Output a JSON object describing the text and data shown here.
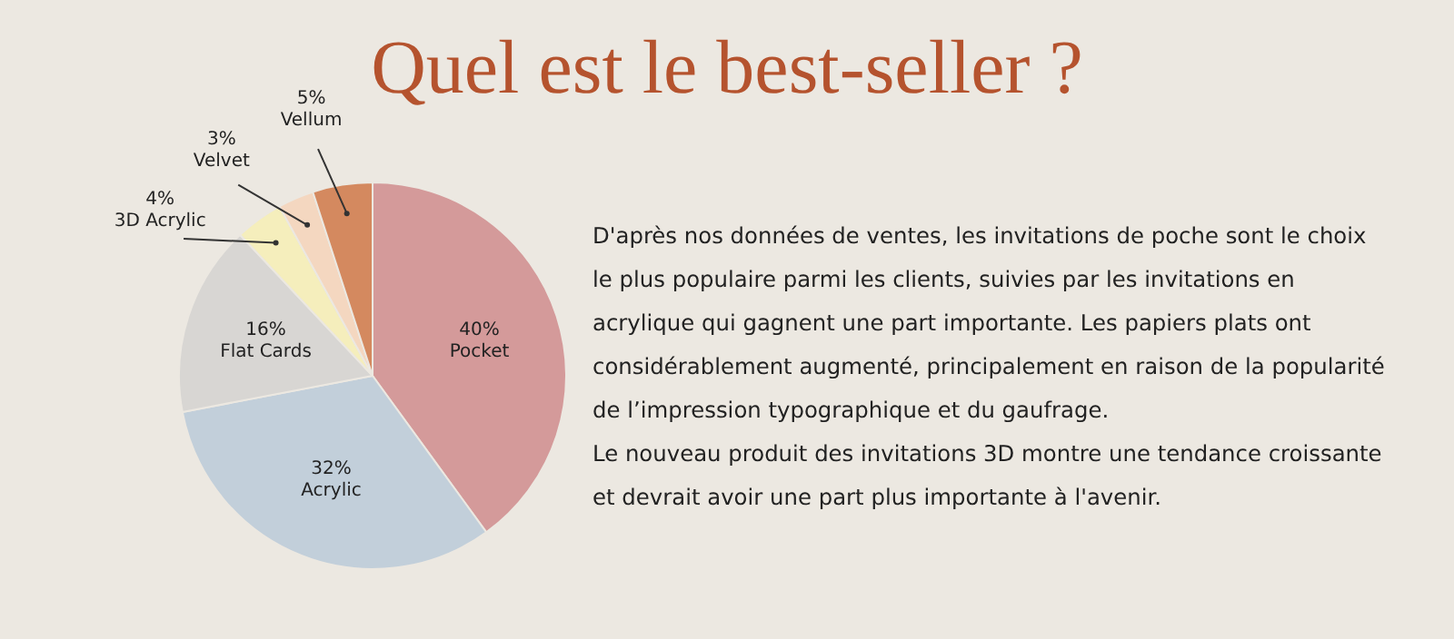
{
  "chart_data": {
    "type": "pie",
    "title": "Quel est le best-seller ?",
    "categories": [
      "Pocket",
      "Acrylic",
      "Flat Cards",
      "3D Acrylic",
      "Velvet",
      "Vellum"
    ],
    "values": [
      40,
      32,
      16,
      4,
      3,
      5
    ],
    "value_labels": [
      "40%",
      "32%",
      "16%",
      "4%",
      "3%",
      "5%"
    ],
    "colors": [
      "#d49a9a",
      "#c2cfda",
      "#d8d6d3",
      "#f5eebc",
      "#f4d7c0",
      "#d4895f"
    ],
    "legend": false,
    "annotations": [
      "D'après nos données de ventes, les invitations de poche sont le choix le plus populaire parmi les clients, suivies par les invitations en acrylique qui gagnent une part importante. Les papiers plats ont considérablement augmenté, principalement en raison de la popularité de l’impression typographique et du gaufrage.\nLe nouveau produit des invitations 3D montre une tendance croissante et devrait avoir une part plus importante à l'avenir."
    ]
  }
}
